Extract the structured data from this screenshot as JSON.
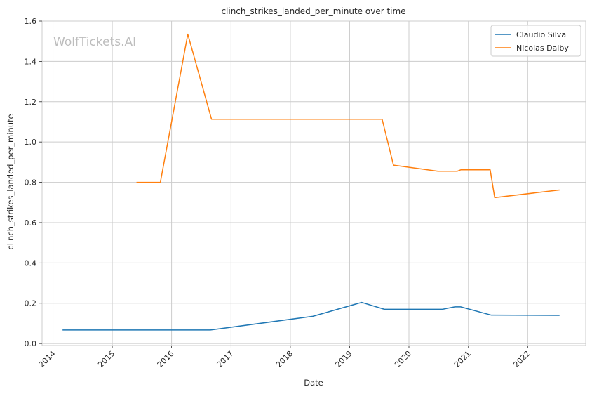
{
  "chart_data": {
    "type": "line",
    "title": "clinch_strikes_landed_per_minute over time",
    "xlabel": "Date",
    "ylabel": "clinch_strikes_landed_per_minute",
    "watermark": "WolfTickets.AI",
    "xlim": [
      "2013-10-26",
      "2022-12-24"
    ],
    "ylim": [
      -0.01,
      1.6
    ],
    "xticks": [
      "2014",
      "2015",
      "2016",
      "2017",
      "2018",
      "2019",
      "2020",
      "2021",
      "2022"
    ],
    "yticks": [
      "0.0",
      "0.2",
      "0.4",
      "0.6",
      "0.8",
      "1.0",
      "1.2",
      "1.4",
      "1.6"
    ],
    "ytick_values": [
      0,
      0.2,
      0.4,
      0.6,
      0.8,
      1.0,
      1.2,
      1.4,
      1.6
    ],
    "grid": true,
    "legend_position": "top-right",
    "series": [
      {
        "name": "Claudio Silva",
        "color": "#1f77b4",
        "points": [
          [
            "2014-03-01",
            0.067
          ],
          [
            "2016-08-27",
            0.067
          ],
          [
            "2018-05-19",
            0.135
          ],
          [
            "2019-03-16",
            0.204
          ],
          [
            "2019-08-03",
            0.17
          ],
          [
            "2020-07-25",
            0.17
          ],
          [
            "2020-10-10",
            0.182
          ],
          [
            "2020-11-14",
            0.182
          ],
          [
            "2021-05-22",
            0.141
          ],
          [
            "2022-07-16",
            0.14
          ]
        ]
      },
      {
        "name": "Nicolas Dalby",
        "color": "#ff7f0e",
        "points": [
          [
            "2015-05-30",
            0.8
          ],
          [
            "2015-10-24",
            0.8
          ],
          [
            "2016-04-10",
            1.535
          ],
          [
            "2016-09-03",
            1.113
          ],
          [
            "2019-07-20",
            1.113
          ],
          [
            "2019-09-28",
            0.885
          ],
          [
            "2020-06-27",
            0.855
          ],
          [
            "2020-10-24",
            0.855
          ],
          [
            "2020-11-15",
            0.862
          ],
          [
            "2021-05-15",
            0.862
          ],
          [
            "2021-06-12",
            0.724
          ],
          [
            "2022-07-16",
            0.762
          ]
        ]
      }
    ]
  }
}
